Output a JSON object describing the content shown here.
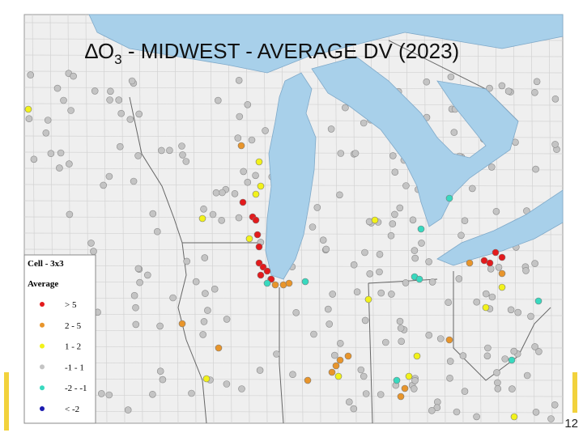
{
  "title": {
    "prefix": "∆O",
    "subscript": "3",
    "rest": " - MIDWEST - AVERAGE DV (2023)"
  },
  "legend": {
    "heading": "Cell - 3x3",
    "subheading": "Average",
    "items": [
      {
        "label": "> 5",
        "color": "#e31a1c"
      },
      {
        "label": "2 - 5",
        "color": "#e8952b"
      },
      {
        "label": "1 - 2",
        "color": "#f2f21a"
      },
      {
        "label": "-1 - 1",
        "color": "#c4c4c4"
      },
      {
        "label": "-2 - -1",
        "color": "#38d9bf"
      },
      {
        "label": "< -2",
        "color": "#1b1bb0"
      }
    ]
  },
  "page_number": "12"
}
